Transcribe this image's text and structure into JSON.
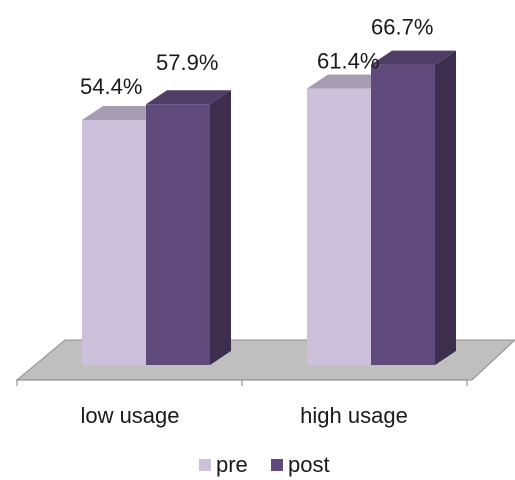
{
  "chart_data": {
    "type": "bar",
    "categories": [
      "low usage",
      "high usage"
    ],
    "series": [
      {
        "name": "pre",
        "values": [
          54.4,
          61.4
        ],
        "labels": [
          "54.4%",
          "61.4%"
        ],
        "color": "#CCC0DA"
      },
      {
        "name": "post",
        "values": [
          57.9,
          66.7
        ],
        "labels": [
          "57.9%",
          "66.7%"
        ],
        "color": "#604A7B"
      }
    ],
    "ylim": [
      0,
      70
    ],
    "grid": false,
    "legend_position": "bottom",
    "floor_color": "#BFBFBF"
  }
}
